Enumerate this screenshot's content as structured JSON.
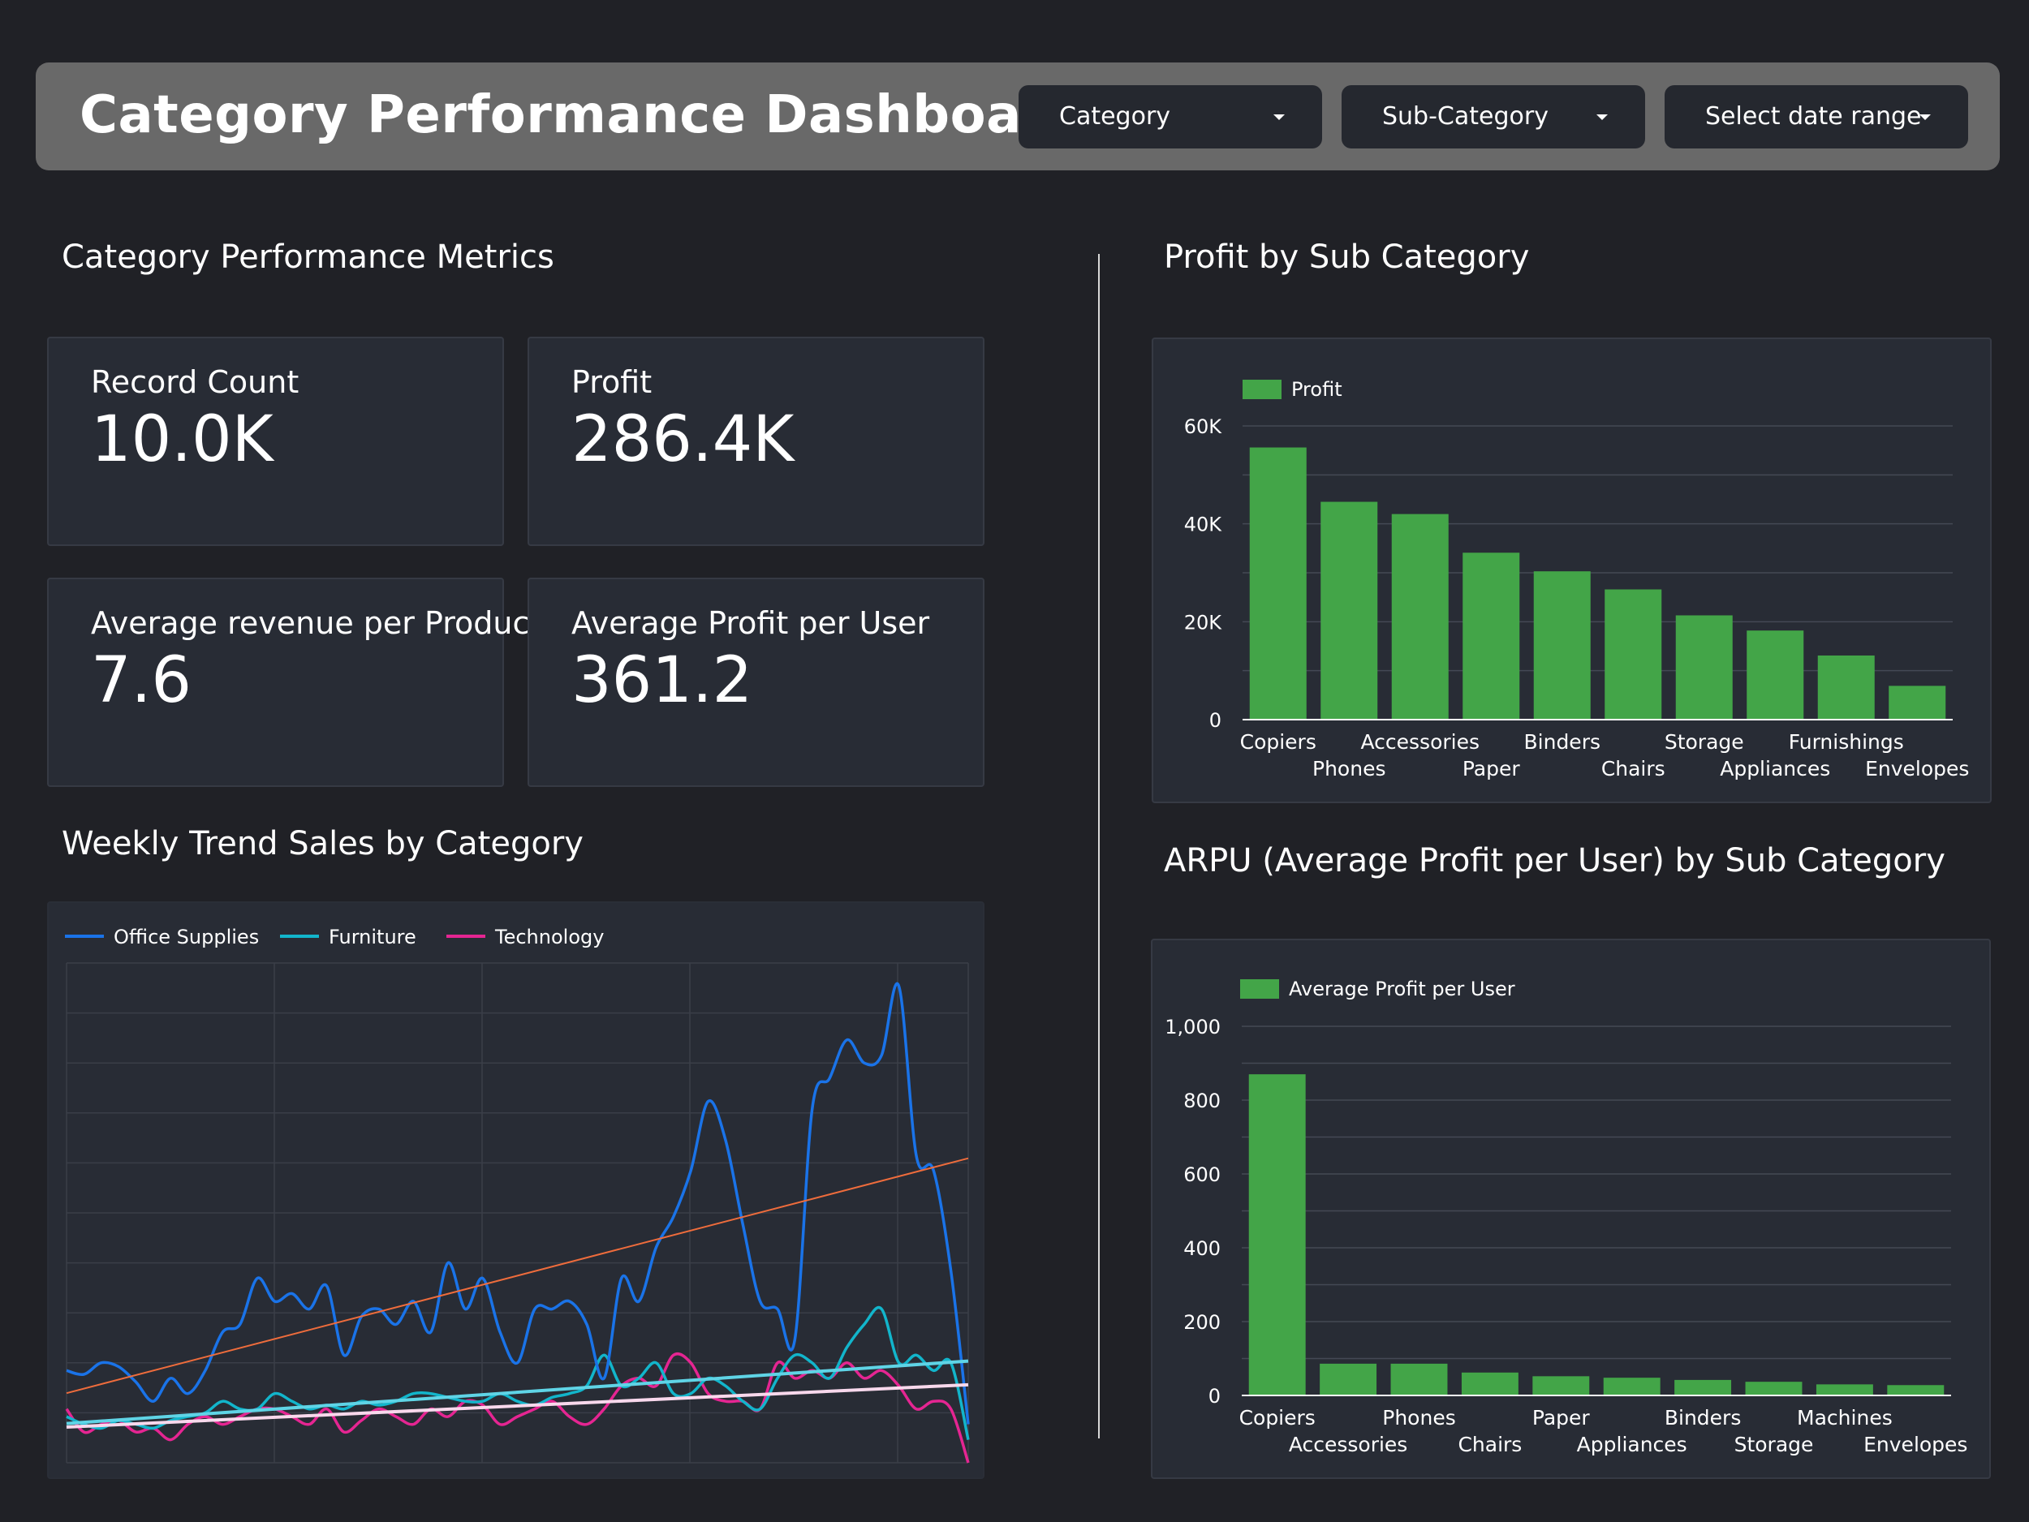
{
  "header": {
    "title": "Category Performance Dashboard",
    "filters": [
      {
        "label": "Category"
      },
      {
        "label": "Sub-Category"
      },
      {
        "label": "Select date range"
      }
    ]
  },
  "sections": {
    "metrics_title": "Category Performance Metrics",
    "trend_title": "Weekly Trend Sales by Category",
    "profit_title": "Profit by Sub Category",
    "arpu_title": "ARPU (Average Profit per User) by Sub Category"
  },
  "kpis": [
    {
      "label": "Record Count",
      "value": "10.0K"
    },
    {
      "label": "Profit",
      "value": "286.4K"
    },
    {
      "label": "Average revenue per Product",
      "value": "7.6"
    },
    {
      "label": "Average Profit per User",
      "value": "361.2"
    }
  ],
  "colors": {
    "bar": "#43a548",
    "office_supplies": "#1a73e8",
    "furniture": "#12b5cb",
    "technology": "#e52592",
    "office_trend": "#ee6c3c",
    "furniture_trend": "#5fd4e6",
    "technology_trend": "#f8d8ec"
  },
  "chart_data": [
    {
      "type": "bar",
      "legend": "Profit",
      "categories": [
        "Copiers",
        "Phones",
        "Accessories",
        "Paper",
        "Binders",
        "Chairs",
        "Storage",
        "Appliances",
        "Furnishings",
        "Envelopes"
      ],
      "values": [
        55600,
        44500,
        42000,
        34100,
        30300,
        26600,
        21300,
        18200,
        13100,
        6900
      ],
      "y_ticks": [
        "0",
        "20K",
        "40K",
        "60K"
      ],
      "ylim": [
        0,
        60000
      ],
      "grid": true
    },
    {
      "type": "bar",
      "legend": "Average Profit per User",
      "categories": [
        "Copiers",
        "Accessories",
        "Phones",
        "Chairs",
        "Paper",
        "Appliances",
        "Binders",
        "Storage",
        "Machines",
        "Envelopes"
      ],
      "values": [
        870,
        86,
        86,
        62,
        52,
        48,
        42,
        37,
        30,
        28
      ],
      "y_ticks": [
        "0",
        "200",
        "400",
        "600",
        "800",
        "1,000"
      ],
      "ylim": [
        0,
        1000
      ],
      "grid": true
    },
    {
      "type": "line",
      "legend": [
        "Office Supplies",
        "Furniture",
        "Technology"
      ],
      "x": [
        1,
        2,
        3,
        4,
        5,
        6,
        7,
        8,
        9,
        10,
        11,
        12,
        13,
        14,
        15,
        16,
        17,
        18,
        19,
        20,
        21,
        22,
        23,
        24,
        25,
        26,
        27,
        28,
        29,
        30,
        31,
        32,
        33,
        34,
        35,
        36,
        37,
        38,
        39,
        40,
        41,
        42,
        43,
        44,
        45,
        46,
        47,
        48,
        49,
        50,
        51,
        52,
        53
      ],
      "series": [
        {
          "name": "Office Supplies",
          "values": [
            7,
            6.5,
            8,
            7.5,
            5.5,
            3,
            6,
            4,
            7,
            12,
            13,
            19,
            16,
            17,
            15,
            18,
            9,
            14,
            15,
            13,
            16,
            12,
            21,
            15,
            19,
            12,
            8,
            15,
            15,
            16,
            13,
            6,
            19,
            16,
            23,
            27,
            33,
            42,
            37,
            26,
            16,
            15,
            11,
            41,
            45,
            50,
            47,
            48,
            57,
            35,
            33,
            20,
            0
          ]
        },
        {
          "name": "Furniture",
          "values": [
            1,
            0,
            -0.5,
            0.5,
            0,
            -0.5,
            0.5,
            1,
            1.5,
            3,
            2,
            2,
            4,
            3,
            2,
            2.5,
            2,
            3,
            2.5,
            3,
            4,
            4,
            3.5,
            3,
            3,
            4,
            3,
            2.5,
            3.5,
            4,
            5,
            9,
            5,
            6,
            8,
            4,
            4,
            6,
            5,
            3,
            2,
            6,
            9,
            8,
            6,
            10,
            13,
            15,
            8,
            9,
            7,
            8,
            -2
          ]
        },
        {
          "name": "Technology",
          "values": [
            2,
            -1,
            0,
            0.5,
            -1,
            -0.5,
            -2,
            0,
            1,
            0,
            1,
            2,
            2,
            1,
            0,
            2,
            -1,
            0.5,
            2,
            1,
            0,
            2,
            1,
            3,
            2.5,
            0,
            1,
            2,
            3,
            1,
            0,
            2,
            5,
            6,
            5,
            9,
            8,
            4,
            3,
            3,
            2,
            8,
            6,
            7,
            6,
            8,
            6,
            7,
            5,
            2,
            3,
            2,
            -5
          ]
        }
      ],
      "trend_lines": true,
      "ylim": [
        -5,
        60
      ],
      "grid": true
    }
  ]
}
